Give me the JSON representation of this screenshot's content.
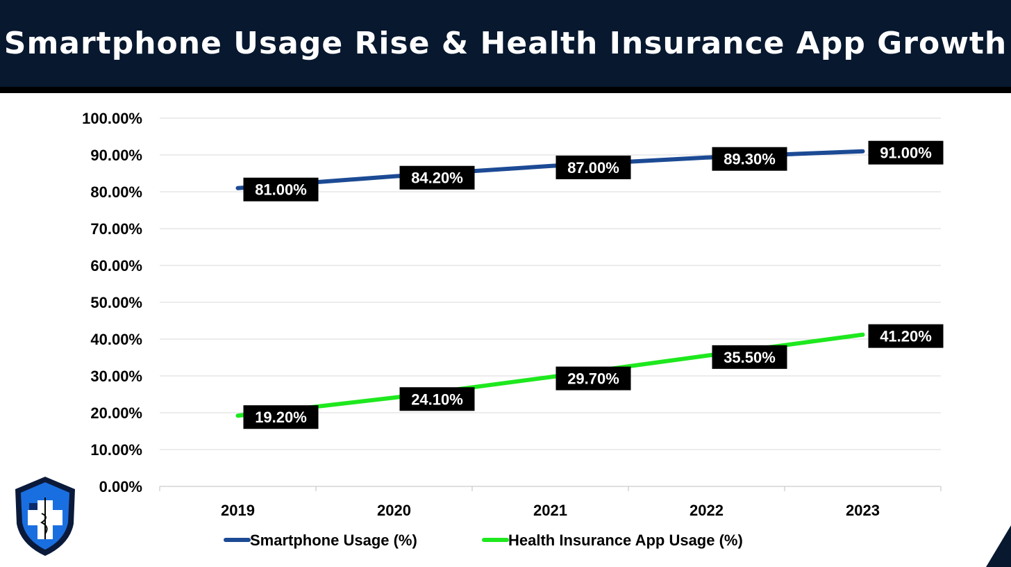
{
  "title": "Smartphone Usage Rise & Health Insurance App Growth",
  "logo": {
    "name": "shield-medical-logo",
    "colors": [
      "#1a6fe0",
      "#0b2a6b",
      "#ffffff"
    ]
  },
  "chart_data": {
    "type": "line",
    "categories": [
      "2019",
      "2020",
      "2021",
      "2022",
      "2023"
    ],
    "ylim": [
      0,
      100
    ],
    "yticks": [
      "0.00%",
      "10.00%",
      "20.00%",
      "30.00%",
      "40.00%",
      "50.00%",
      "60.00%",
      "70.00%",
      "80.00%",
      "90.00%",
      "100.00%"
    ],
    "grid": true,
    "legend": "bottom",
    "series": [
      {
        "name": "Smartphone Usage (%)",
        "color": "#1c4a94",
        "values": [
          81.0,
          84.2,
          87.0,
          89.3,
          91.0
        ],
        "labels": [
          "81.00%",
          "84.20%",
          "87.00%",
          "89.30%",
          "91.00%"
        ]
      },
      {
        "name": "Health Insurance App Usage (%)",
        "color": "#1ee81e",
        "values": [
          19.2,
          24.1,
          29.7,
          35.5,
          41.2
        ],
        "labels": [
          "19.20%",
          "24.10%",
          "29.70%",
          "35.50%",
          "41.20%"
        ]
      }
    ]
  }
}
